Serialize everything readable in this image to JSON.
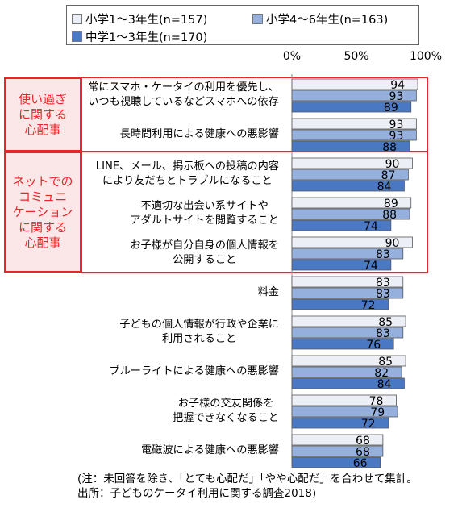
{
  "legend": {
    "items": [
      {
        "name": "小学1～3年生(n=157)",
        "color": "#eceff6"
      },
      {
        "name": "小学4～6年生(n=163)",
        "color": "#95b0dc"
      },
      {
        "name": "中学1～3年生(n=170)",
        "color": "#4a78c2"
      }
    ]
  },
  "groups": [
    {
      "label": "使い過ぎ\nに関する\n心配事",
      "color": "#e8252b"
    },
    {
      "label": "ネットでの\nコミュニ\nケーション\nに関する\n心配事",
      "color": "#e8252b"
    }
  ],
  "chart_data": {
    "type": "bar",
    "orientation": "horizontal",
    "xlim": [
      0,
      100
    ],
    "x_ticks": [
      "0%",
      "50%",
      "100%"
    ],
    "categories": [
      "常にスマホ・ケータイの利用を優先し、\nいつも視聴しているなどスマホへの依存",
      "長時間利用による健康への悪影響",
      "LINE、メール、掲示板への投稿の内容\nにより友だちとトラブルになること",
      "不適切な出会い系サイトや\nアダルトサイトを閲覧すること",
      "お子様が自分自身の個人情報を\n公開すること",
      "料金",
      "子どもの個人情報が行政や企業に\n利用されること",
      "ブルーライトによる健康への悪影響",
      "お子様の交友関係を\n把握できなくなること",
      "電磁波による健康への悪影響"
    ],
    "series": [
      {
        "name": "小学1～3年生(n=157)",
        "color": "#eceff6",
        "values": [
          94,
          93,
          90,
          89,
          90,
          83,
          85,
          85,
          78,
          68
        ]
      },
      {
        "name": "小学4～6年生(n=163)",
        "color": "#95b0dc",
        "values": [
          93,
          93,
          87,
          88,
          83,
          83,
          83,
          82,
          79,
          68
        ]
      },
      {
        "name": "中学1～3年生(n=170)",
        "color": "#4a78c2",
        "values": [
          89,
          88,
          84,
          74,
          74,
          72,
          76,
          84,
          72,
          66
        ]
      }
    ]
  },
  "notes": {
    "line1": "(注：未回答を除き、「とても心配だ」「やや心配だ」を合わせて集計。",
    "line2": "出所：子どものケータイ利用に関する調査2018)"
  }
}
